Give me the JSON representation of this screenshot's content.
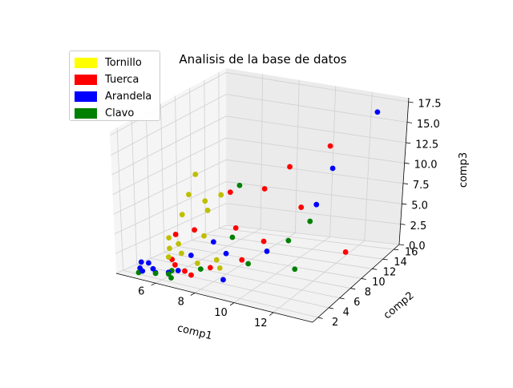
{
  "chart_data": {
    "type": "scatter",
    "title": "Analisis de la base de datos",
    "xlabel": "comp1",
    "ylabel": "comp2",
    "zlabel": "comp3",
    "xlim": [
      4,
      14
    ],
    "ylim": [
      1,
      17
    ],
    "zlim": [
      0,
      18
    ],
    "xticks": [
      "6",
      "8",
      "10",
      "12"
    ],
    "yticks": [
      "2",
      "4",
      "6",
      "8",
      "10",
      "12",
      "14",
      "16"
    ],
    "zticks": [
      "0.0",
      "2.5",
      "5.0",
      "7.5",
      "10.0",
      "12.5",
      "15.0",
      "17.5"
    ],
    "legend_position": "top-left",
    "series": [
      {
        "name": "Tornillo",
        "color": "#bfbf00",
        "legend_color": "#ffff00",
        "points": [
          [
            5.0,
            10.0,
            9.0
          ],
          [
            5.0,
            9.0,
            7.0
          ],
          [
            5.0,
            8.0,
            5.0
          ],
          [
            5.0,
            6.0,
            3.0
          ],
          [
            5.2,
            5.5,
            2.0
          ],
          [
            5.5,
            6.0,
            2.5
          ],
          [
            5.5,
            4.5,
            1.5
          ],
          [
            6.0,
            5.0,
            2.0
          ],
          [
            6.0,
            9.0,
            5.5
          ],
          [
            6.5,
            7.0,
            3.5
          ],
          [
            7.0,
            4.5,
            1.5
          ],
          [
            7.5,
            6.0,
            1.5
          ],
          [
            8.0,
            5.0,
            1.2
          ],
          [
            5.5,
            10.0,
            6.0
          ],
          [
            6.0,
            11.0,
            6.5
          ]
        ]
      },
      {
        "name": "Tuerca",
        "color": "#ff0000",
        "legend_color": "#ff0000",
        "points": [
          [
            5.0,
            7.0,
            3.0
          ],
          [
            5.5,
            5.0,
            1.0
          ],
          [
            6.0,
            7.0,
            4.0
          ],
          [
            6.5,
            11.0,
            7.0
          ],
          [
            6.5,
            4.0,
            0.5
          ],
          [
            7.0,
            3.5,
            0.5
          ],
          [
            7.5,
            5.0,
            1.0
          ],
          [
            7.5,
            9.0,
            4.0
          ],
          [
            8.0,
            12.0,
            7.5
          ],
          [
            9.0,
            13.0,
            10.0
          ],
          [
            9.0,
            9.0,
            3.0
          ],
          [
            10.0,
            12.0,
            6.0
          ],
          [
            10.5,
            15.0,
            12.0
          ],
          [
            12.5,
            12.0,
            1.5
          ],
          [
            8.5,
            7.0,
            1.5
          ],
          [
            6.0,
            4.0,
            1.0
          ]
        ]
      },
      {
        "name": "Arandela",
        "color": "#0000ff",
        "legend_color": "#0000ff",
        "points": [
          [
            4.6,
            3.0,
            1.0
          ],
          [
            4.7,
            2.5,
            0.5
          ],
          [
            4.8,
            3.5,
            0.8
          ],
          [
            5.0,
            2.0,
            0.5
          ],
          [
            5.2,
            3.0,
            0.5
          ],
          [
            5.5,
            2.5,
            0.4
          ],
          [
            6.0,
            3.0,
            0.5
          ],
          [
            6.5,
            3.0,
            1.0
          ],
          [
            6.5,
            5.0,
            2.0
          ],
          [
            7.0,
            7.0,
            3.0
          ],
          [
            8.0,
            6.0,
            2.5
          ],
          [
            8.5,
            4.0,
            0.5
          ],
          [
            9.5,
            8.0,
            2.5
          ],
          [
            10.5,
            13.0,
            6.0
          ],
          [
            11.0,
            14.0,
            10.0
          ],
          [
            12.5,
            16.5,
            16.0
          ]
        ]
      },
      {
        "name": "Clavo",
        "color": "#008000",
        "legend_color": "#008000",
        "points": [
          [
            4.8,
            2.0,
            0.2
          ],
          [
            5.5,
            2.5,
            0.3
          ],
          [
            6.0,
            3.0,
            0.3
          ],
          [
            6.3,
            2.5,
            0.2
          ],
          [
            7.5,
            3.5,
            1.5
          ],
          [
            8.0,
            7.0,
            4.0
          ],
          [
            9.0,
            6.5,
            1.5
          ],
          [
            10.0,
            10.0,
            3.0
          ],
          [
            10.5,
            12.0,
            4.5
          ],
          [
            11.0,
            8.0,
            1.0
          ],
          [
            7.0,
            11.0,
            8.0
          ],
          [
            6.0,
            3.5,
            0.5
          ]
        ]
      }
    ]
  }
}
